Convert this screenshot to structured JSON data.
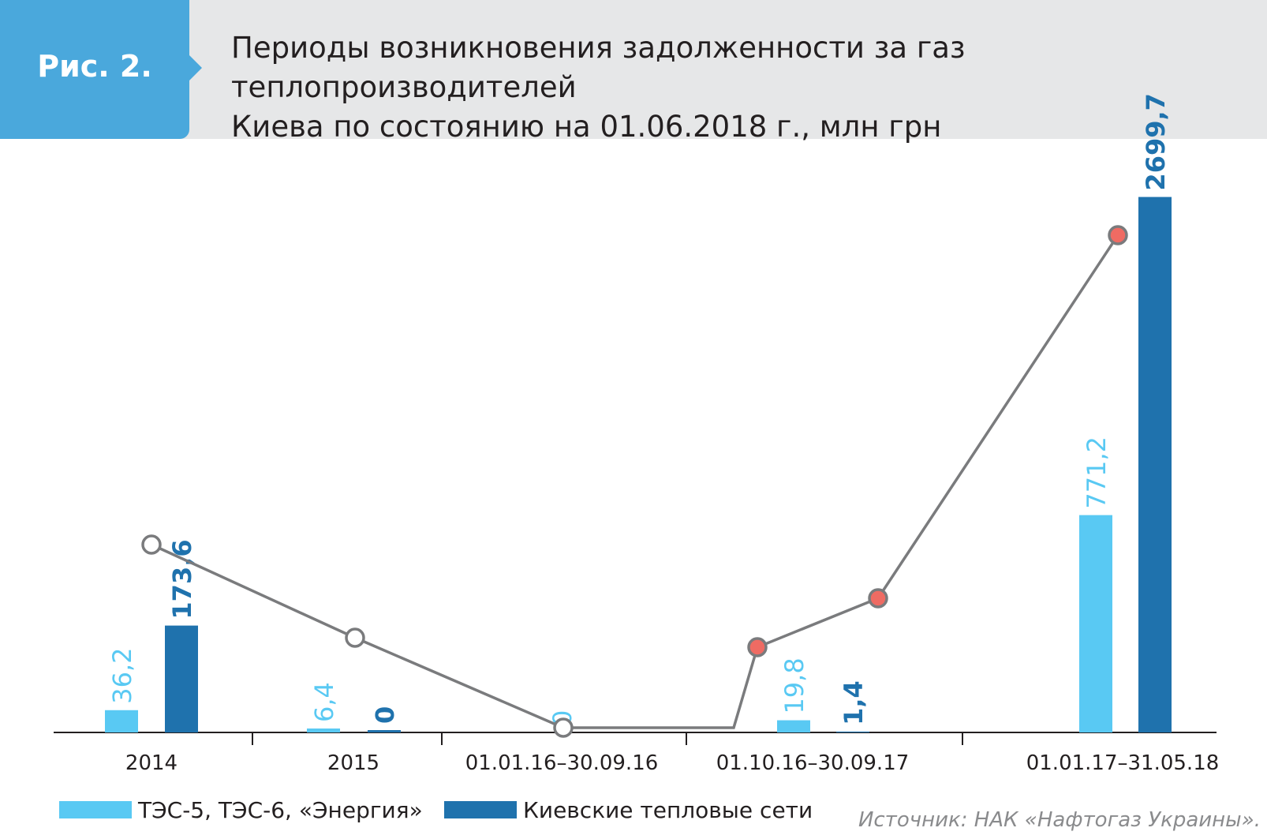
{
  "header": {
    "figure_label": "Рис. 2.",
    "title_line1": "Периоды возникновения задолженности за газ теплопроизводителей",
    "title_line2": "Киева по состоянию на 01.06.2018 г., млн грн"
  },
  "legend": {
    "item1": "ТЭС-5, ТЭС-6, «Энергия»",
    "item2": "Киевские тепловые сети"
  },
  "source": "Источник: НАК «Нафтогаз Украины».",
  "colors": {
    "series1": "#59c9f3",
    "series2": "#1f72ad",
    "line": "#7a7b7d",
    "marker_hollow": "#ffffff",
    "marker_red": "#ef6b63",
    "header_bg": "#e6e7e8",
    "tab_bg": "#4aa8dc"
  },
  "chart_data": {
    "type": "bar",
    "categories": [
      "2014",
      "2015",
      "01.01.16–30.09.16",
      "01.10.16–30.09.17",
      "01.01.17–31.05.18"
    ],
    "series": [
      {
        "name": "ТЭС-5, ТЭС-6, «Энергия»",
        "values": [
          36.2,
          6.4,
          0,
          19.8,
          771.2
        ],
        "labels": [
          "36,2",
          "6,4",
          "0",
          "19,8",
          "771,2"
        ]
      },
      {
        "name": "Киевские тепловые сети",
        "values": [
          173.6,
          0,
          null,
          1.4,
          2699.7
        ],
        "labels": [
          "173,6",
          "0",
          "",
          "1,4",
          "2699,7"
        ]
      }
    ],
    "trend_line": {
      "markers": [
        "hollow",
        "hollow",
        "hollow",
        "red",
        "red",
        "red"
      ]
    },
    "xlabel": "",
    "ylabel": "",
    "grid": false,
    "legend_position": "bottom-left"
  }
}
